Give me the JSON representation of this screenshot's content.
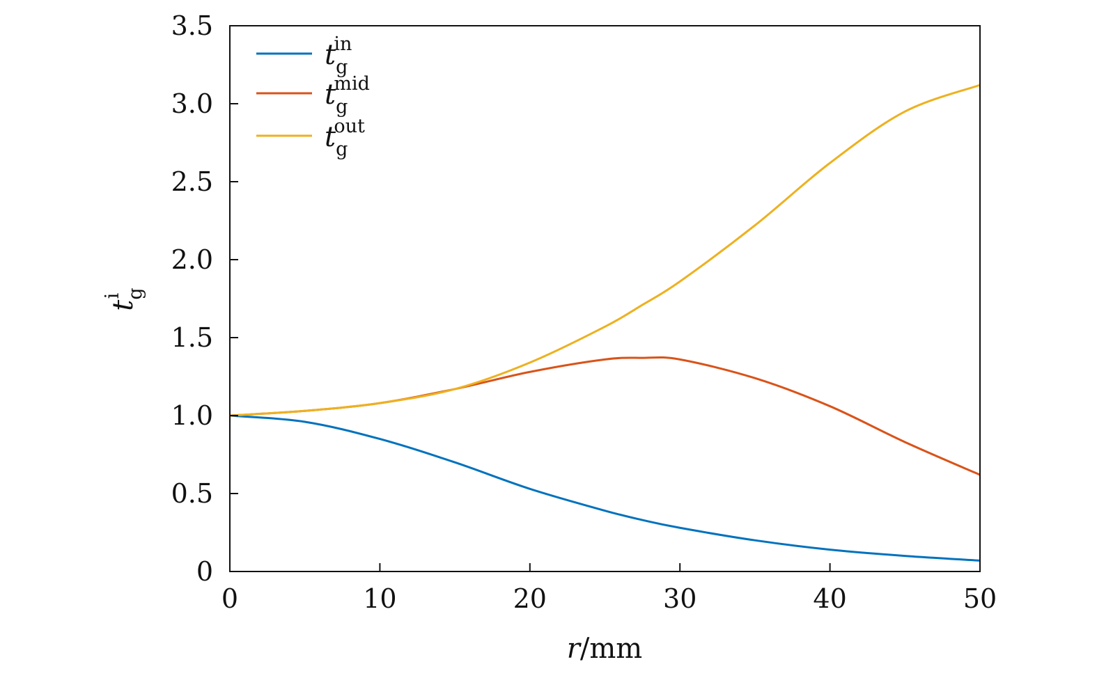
{
  "chart_data": {
    "type": "line",
    "title": "",
    "xlabel": {
      "var": "r",
      "unit": "/mm"
    },
    "ylabel": {
      "var": "t",
      "sub": "g",
      "sup": "i"
    },
    "xlim": [
      0,
      50
    ],
    "ylim": [
      0,
      3.5
    ],
    "xticks": [
      0,
      10,
      20,
      30,
      40,
      50
    ],
    "xtick_labels": [
      "0",
      "10",
      "20",
      "30",
      "40",
      "50"
    ],
    "yticks": [
      0,
      0.5,
      1.0,
      1.5,
      2.0,
      2.5,
      3.0,
      3.5
    ],
    "ytick_labels": [
      "0",
      "0.5",
      "1.0",
      "1.5",
      "2.0",
      "2.5",
      "3.0",
      "3.5"
    ],
    "grid": false,
    "legend_position": "top-left",
    "x": [
      0,
      5,
      10,
      15,
      20,
      25,
      27.5,
      30,
      35,
      40,
      45,
      50
    ],
    "series": [
      {
        "name": "in",
        "label": {
          "var": "t",
          "sub": "g",
          "sup": "in"
        },
        "color": "#0072BD",
        "values": [
          1.0,
          0.96,
          0.85,
          0.7,
          0.53,
          0.39,
          0.33,
          0.28,
          0.2,
          0.14,
          0.1,
          0.07
        ]
      },
      {
        "name": "mid",
        "label": {
          "var": "t",
          "sub": "g",
          "sup": "mid"
        },
        "color": "#D95319",
        "values": [
          1.0,
          1.03,
          1.08,
          1.17,
          1.28,
          1.36,
          1.37,
          1.36,
          1.24,
          1.06,
          0.83,
          0.62
        ]
      },
      {
        "name": "out",
        "label": {
          "var": "t",
          "sub": "g",
          "sup": "out"
        },
        "color": "#EDB120",
        "values": [
          1.0,
          1.03,
          1.08,
          1.17,
          1.34,
          1.57,
          1.71,
          1.86,
          2.22,
          2.62,
          2.95,
          3.12
        ]
      }
    ]
  }
}
